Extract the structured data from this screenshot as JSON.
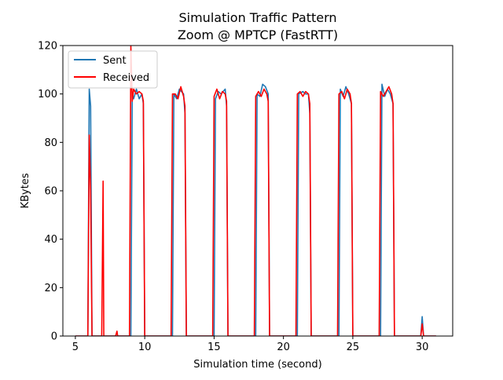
{
  "chart_data": {
    "type": "line",
    "title": "Simulation Traffic Pattern",
    "subtitle": "Zoom @ MPTCP (FastRTT)",
    "xlabel": "Simulation time (second)",
    "ylabel": "KBytes",
    "xlim": [
      4.1,
      32.2
    ],
    "ylim": [
      0,
      120
    ],
    "xticks": [
      5,
      10,
      15,
      20,
      25,
      30
    ],
    "yticks": [
      0,
      20,
      40,
      60,
      80,
      100,
      120
    ],
    "grid": false,
    "legend_position": "top-left",
    "series": [
      {
        "name": "Sent",
        "color": "#1f77b4",
        "points": [
          [
            5.0,
            0
          ],
          [
            5.9,
            0
          ],
          [
            6.0,
            102
          ],
          [
            6.1,
            95
          ],
          [
            6.2,
            0
          ],
          [
            9.0,
            0
          ],
          [
            9.1,
            100
          ],
          [
            9.2,
            98
          ],
          [
            9.4,
            102
          ],
          [
            9.6,
            98
          ],
          [
            9.8,
            100
          ],
          [
            9.9,
            96
          ],
          [
            10.0,
            0
          ],
          [
            12.0,
            0
          ],
          [
            12.1,
            100
          ],
          [
            12.3,
            98
          ],
          [
            12.5,
            102
          ],
          [
            12.8,
            100
          ],
          [
            12.9,
            92
          ],
          [
            13.0,
            0
          ],
          [
            15.0,
            0
          ],
          [
            15.1,
            98
          ],
          [
            15.3,
            101
          ],
          [
            15.5,
            100
          ],
          [
            15.8,
            102
          ],
          [
            15.9,
            95
          ],
          [
            16.0,
            0
          ],
          [
            18.0,
            0
          ],
          [
            18.1,
            100
          ],
          [
            18.3,
            99
          ],
          [
            18.5,
            104
          ],
          [
            18.7,
            103
          ],
          [
            18.9,
            100
          ],
          [
            19.0,
            0
          ],
          [
            21.0,
            0
          ],
          [
            21.1,
            100
          ],
          [
            21.4,
            101
          ],
          [
            21.6,
            100
          ],
          [
            21.8,
            100
          ],
          [
            21.9,
            92
          ],
          [
            22.0,
            0
          ],
          [
            24.0,
            0
          ],
          [
            24.1,
            102
          ],
          [
            24.3,
            99
          ],
          [
            24.5,
            103
          ],
          [
            24.7,
            100
          ],
          [
            24.9,
            96
          ],
          [
            25.0,
            0
          ],
          [
            27.0,
            0
          ],
          [
            27.1,
            104
          ],
          [
            27.3,
            99
          ],
          [
            27.5,
            102
          ],
          [
            27.7,
            100
          ],
          [
            27.9,
            96
          ],
          [
            28.0,
            0
          ],
          [
            29.9,
            0
          ],
          [
            30.0,
            8
          ],
          [
            30.1,
            0
          ],
          [
            31.0,
            0
          ]
        ]
      },
      {
        "name": "Received",
        "color": "#ff0000",
        "points": [
          [
            5.0,
            0
          ],
          [
            5.9,
            0
          ],
          [
            6.0,
            83
          ],
          [
            6.1,
            60
          ],
          [
            6.2,
            0
          ],
          [
            6.9,
            0
          ],
          [
            7.0,
            64
          ],
          [
            7.05,
            0
          ],
          [
            7.9,
            0
          ],
          [
            8.0,
            2
          ],
          [
            8.05,
            0
          ],
          [
            8.9,
            0
          ],
          [
            9.0,
            120
          ],
          [
            9.1,
            97
          ],
          [
            9.2,
            102
          ],
          [
            9.4,
            100
          ],
          [
            9.6,
            101
          ],
          [
            9.8,
            100
          ],
          [
            9.9,
            97
          ],
          [
            10.0,
            0
          ],
          [
            11.9,
            0
          ],
          [
            12.0,
            100
          ],
          [
            12.2,
            100
          ],
          [
            12.4,
            98
          ],
          [
            12.6,
            103
          ],
          [
            12.8,
            99
          ],
          [
            12.9,
            95
          ],
          [
            13.0,
            0
          ],
          [
            14.9,
            0
          ],
          [
            15.0,
            99
          ],
          [
            15.2,
            102
          ],
          [
            15.4,
            98
          ],
          [
            15.6,
            101
          ],
          [
            15.8,
            100
          ],
          [
            15.9,
            97
          ],
          [
            16.0,
            0
          ],
          [
            17.9,
            0
          ],
          [
            18.0,
            99
          ],
          [
            18.2,
            101
          ],
          [
            18.4,
            99
          ],
          [
            18.6,
            102
          ],
          [
            18.8,
            100
          ],
          [
            18.9,
            97
          ],
          [
            19.0,
            0
          ],
          [
            20.9,
            0
          ],
          [
            21.0,
            100
          ],
          [
            21.2,
            101
          ],
          [
            21.4,
            99
          ],
          [
            21.6,
            101
          ],
          [
            21.8,
            100
          ],
          [
            21.9,
            96
          ],
          [
            22.0,
            0
          ],
          [
            23.9,
            0
          ],
          [
            24.0,
            100
          ],
          [
            24.2,
            101
          ],
          [
            24.4,
            98
          ],
          [
            24.6,
            102
          ],
          [
            24.8,
            100
          ],
          [
            24.9,
            96
          ],
          [
            25.0,
            0
          ],
          [
            26.9,
            0
          ],
          [
            27.0,
            101
          ],
          [
            27.2,
            99
          ],
          [
            27.4,
            101
          ],
          [
            27.6,
            103
          ],
          [
            27.8,
            100
          ],
          [
            27.9,
            96
          ],
          [
            28.0,
            0
          ],
          [
            29.9,
            0
          ],
          [
            30.0,
            5
          ],
          [
            30.1,
            0
          ],
          [
            31.0,
            0
          ]
        ]
      }
    ]
  }
}
